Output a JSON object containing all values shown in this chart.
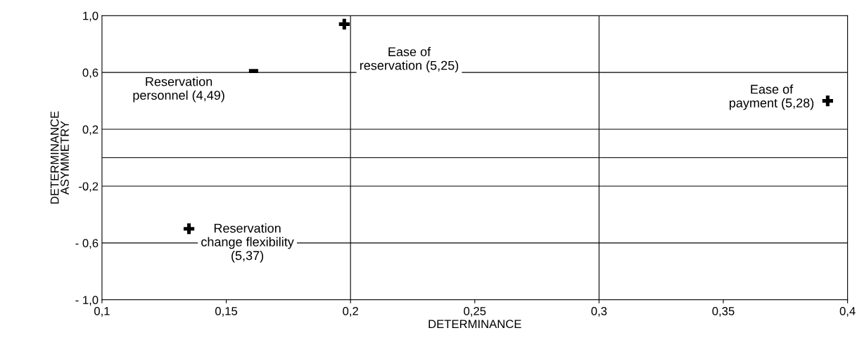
{
  "chart_data": {
    "type": "scatter",
    "xlabel": "DETERMINANCE",
    "ylabel": "DETERMINANCE\nASYMMETRY",
    "series": [
      {
        "color": "#000000",
        "marker": "cross",
        "x": [
          0.1975,
          0.392,
          0.135
        ],
        "values": [
          0.94,
          0.4,
          -0.5
        ]
      },
      {
        "color": "#000000",
        "x": [
          0.161
        ],
        "values": [
          0.61
        ]
      }
    ],
    "xlim": [
      0.1,
      0.4
    ],
    "ylim": [
      -1.0,
      1.0
    ],
    "xticks": [
      {
        "value": 0.1,
        "label": "0,1"
      },
      {
        "value": 0.15,
        "label": "0,15"
      },
      {
        "value": 0.2,
        "label": "0,2"
      },
      {
        "value": 0.25,
        "label": "0,25"
      },
      {
        "value": 0.3,
        "label": "0,3"
      },
      {
        "value": 0.35,
        "label": "0,35"
      },
      {
        "value": 0.4,
        "label": "0,4"
      }
    ],
    "yticks": [
      {
        "value": -1.0,
        "label": "- 1,0"
      },
      {
        "value": -0.6,
        "label": "- 0,6"
      },
      {
        "value": -0.2,
        "label": "-0,2"
      },
      {
        "value": 0.2,
        "label": "0,2"
      },
      {
        "value": 0.6,
        "label": "0,6"
      },
      {
        "value": 1.0,
        "label": "1,0"
      }
    ],
    "grid": "y",
    "ref_lines": [
      {
        "axis": "x",
        "value": 0.2,
        "color": "#000000"
      },
      {
        "axis": "x",
        "value": 0.3,
        "color": "#000000"
      },
      {
        "axis": "y",
        "value": 0,
        "color": "#000000"
      }
    ],
    "annotations": [
      "Ease of\nreservation (5,25)",
      "Reservation\npersonnel (4,49)",
      "Ease of\npayment (5,28)",
      "Reservation\nchange flexibility\n(5,37)"
    ]
  }
}
